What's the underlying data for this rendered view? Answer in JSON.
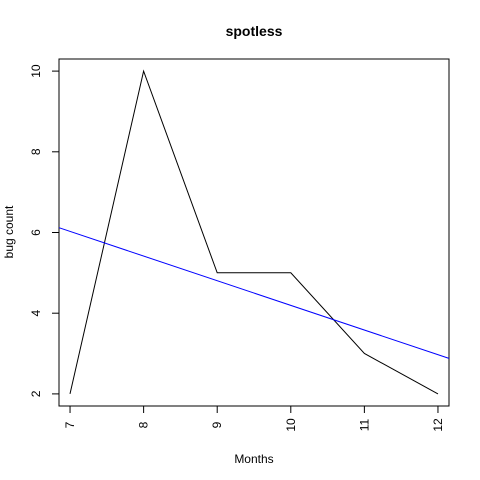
{
  "chart_data": {
    "type": "line",
    "title": "spotless",
    "xlabel": "Months",
    "ylabel": "bug count",
    "xlim": [
      6.85,
      12.15
    ],
    "ylim": [
      1.7,
      10.3
    ],
    "x_ticks": [
      7,
      8,
      9,
      10,
      11,
      12
    ],
    "y_ticks": [
      2,
      4,
      6,
      8,
      10
    ],
    "grid": false,
    "legend": "none",
    "series": [
      {
        "x": [
          7,
          8,
          9,
          10,
          11,
          12
        ],
        "values": [
          2,
          10,
          5,
          5,
          3,
          2
        ],
        "color": "#000000"
      },
      {
        "kind": "trend-line",
        "x": [
          6.85,
          12.15
        ],
        "values": [
          6.12,
          2.88
        ],
        "color": "#0000ff"
      }
    ]
  }
}
